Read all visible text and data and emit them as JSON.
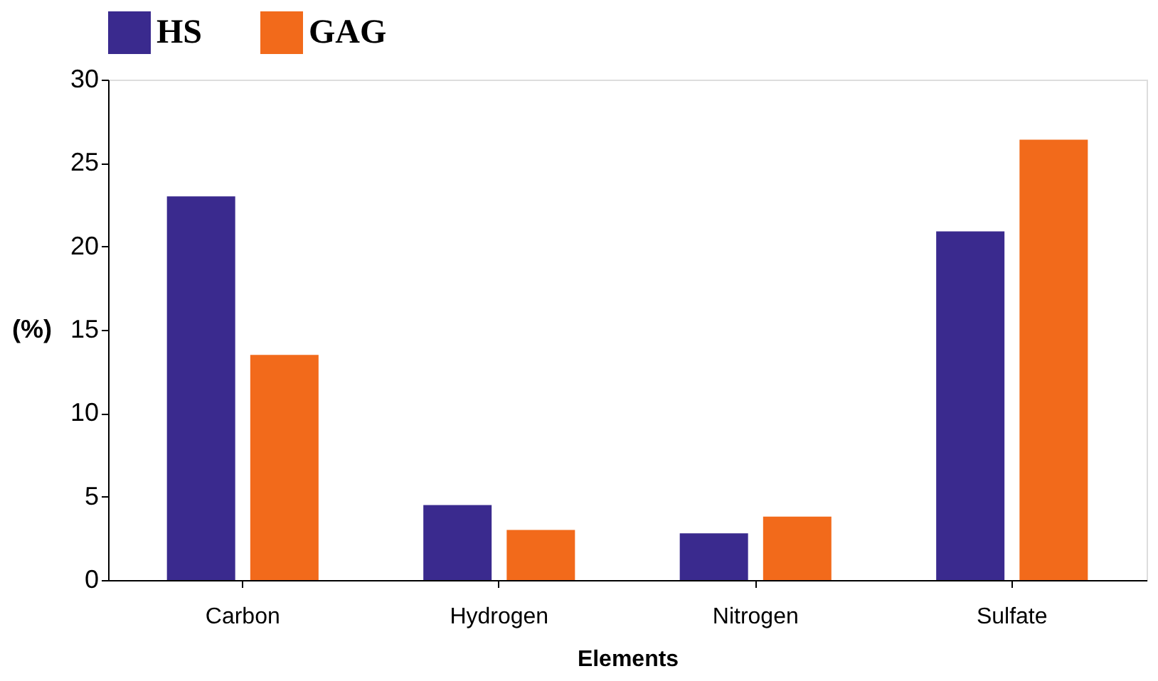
{
  "chart_data": {
    "type": "bar",
    "xlabel": "Elements",
    "ylabel": "(%)",
    "categories": [
      "Carbon",
      "Hydrogen",
      "Nitrogen",
      "Sulfate"
    ],
    "series": [
      {
        "name": "HS",
        "color": "#3a2a8e",
        "values": [
          23,
          4.5,
          2.8,
          20.9
        ]
      },
      {
        "name": "GAG",
        "color": "#f26a1b",
        "values": [
          13.5,
          3,
          3.8,
          26.4
        ]
      }
    ],
    "ylim": [
      0,
      30
    ],
    "yticks": [
      0,
      5,
      10,
      15,
      20,
      25,
      30
    ],
    "grid": false,
    "legend": "top"
  }
}
